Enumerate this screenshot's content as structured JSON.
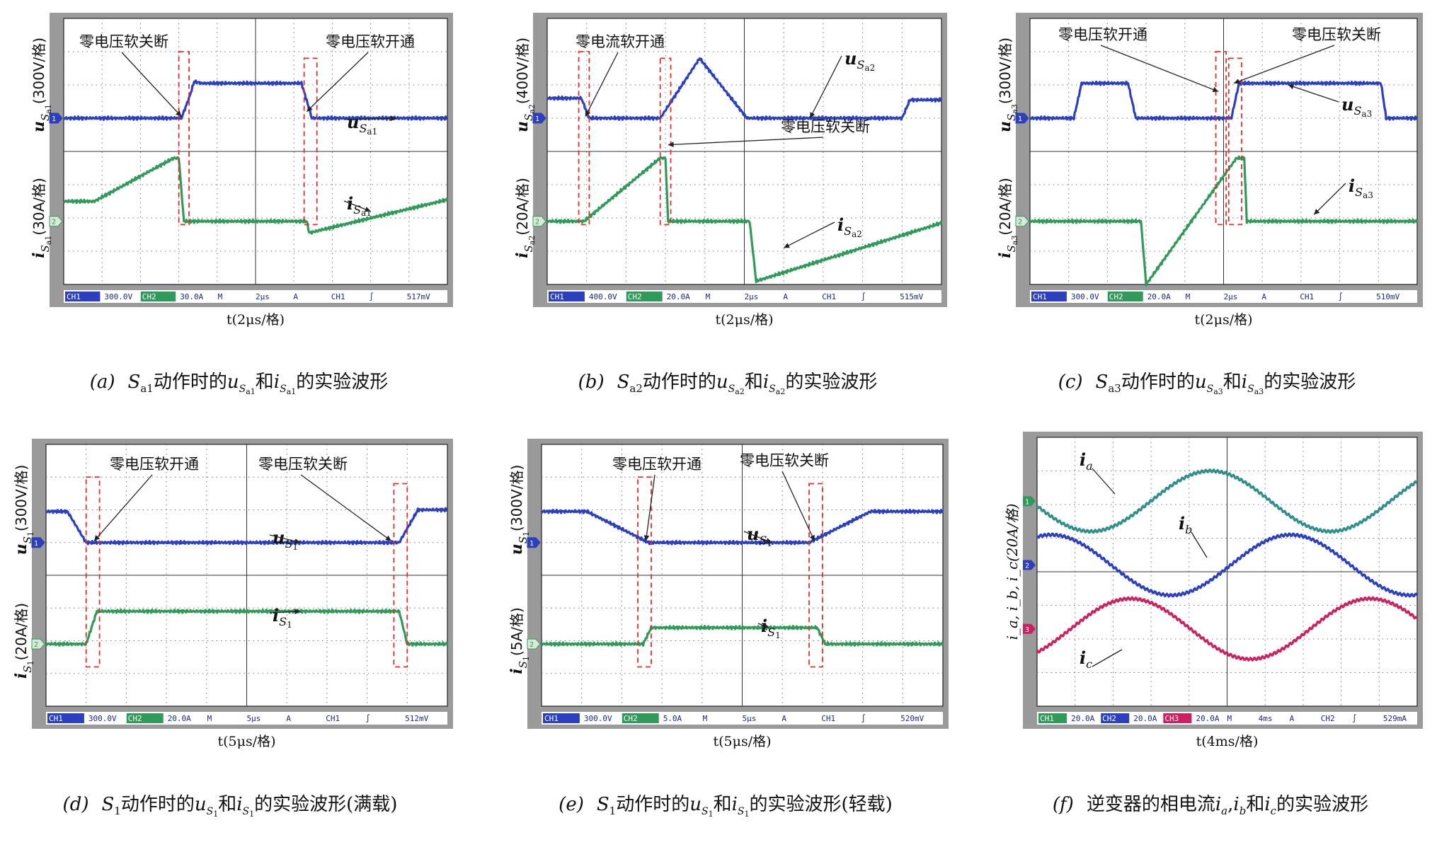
{
  "chart_data": [
    {
      "id": "a",
      "type": "line",
      "caption": {
        "prefix": "(a)",
        "pre": "S",
        "pre_sub": "a1",
        "mid": "动作时的",
        "v": "u",
        "v_sub": "S",
        "v_subsub": "a1",
        "and": "和",
        "i": "i",
        "i_sub": "S",
        "i_subsub": "a1",
        "post": "的实验波形"
      },
      "xlabel": "t(2μs/格)",
      "ylabel_top": {
        "main": "u",
        "sub": "S",
        "subsub": "a1",
        "unit": "(300V/格)"
      },
      "ylabel_bottom": {
        "main": "i",
        "sub": "S",
        "subsub": "a1",
        "unit": "(30A/格)"
      },
      "annotations": [
        {
          "text": "零电压软关断",
          "kind": "cn"
        },
        {
          "text": "零电压软开通",
          "kind": "cn"
        },
        {
          "main": "u",
          "sub": "S",
          "subsub": "a1",
          "kind": "sym"
        },
        {
          "main": "i",
          "sub": "S",
          "subsub": "a1",
          "kind": "sym"
        }
      ],
      "status": [
        "CH1",
        "300.0V",
        "CH2",
        "30.0A",
        "M",
        "2μs",
        "A",
        "CH1",
        "∫",
        "517mV"
      ],
      "channel_markers": [
        "1",
        "2"
      ],
      "series": [
        {
          "name": "CH1",
          "color": "#2b3fbf",
          "x": [
            0,
            4.6,
            4.9,
            5.1,
            5.4,
            7,
            9.3,
            9.7,
            11.5,
            15
          ],
          "y": [
            1.0,
            1.0,
            1.6,
            2.1,
            2.05,
            2.05,
            2.05,
            1.0,
            1.0,
            1.0
          ]
        },
        {
          "name": "CH2",
          "color": "#2f9a5a",
          "x": [
            0,
            1.2,
            4.3,
            4.5,
            4.7,
            6,
            9.5,
            9.6,
            10.4,
            15
          ],
          "y": [
            0.6,
            0.6,
            1.9,
            1.9,
            0.0,
            0.0,
            0.0,
            -0.35,
            -0.2,
            0.65
          ]
        }
      ],
      "zvs_windows": [
        [
          4.5,
          4.9
        ],
        [
          9.4,
          9.9
        ]
      ]
    },
    {
      "id": "b",
      "type": "line",
      "caption": {
        "prefix": "(b)",
        "pre": "S",
        "pre_sub": "a2",
        "mid": "动作时的",
        "v": "u",
        "v_sub": "S",
        "v_subsub": "a2",
        "and": "和",
        "i": "i",
        "i_sub": "S",
        "i_subsub": "a2",
        "post": "的实验波形"
      },
      "xlabel": "t(2μs/格)",
      "ylabel_top": {
        "main": "u",
        "sub": "S",
        "subsub": "a2",
        "unit": "(400V/格)"
      },
      "ylabel_bottom": {
        "main": "i",
        "sub": "S",
        "subsub": "a2",
        "unit": "(20A/格)"
      },
      "annotations": [
        {
          "text": "零电流软开通",
          "kind": "cn"
        },
        {
          "text": "零电压软关断",
          "kind": "cn"
        },
        {
          "main": "u",
          "sub": "S",
          "subsub": "a2",
          "kind": "sym"
        },
        {
          "main": "i",
          "sub": "S",
          "subsub": "a2",
          "kind": "sym"
        }
      ],
      "status": [
        "CH1",
        "400.0V",
        "CH2",
        "20.0A",
        "M",
        "2μs",
        "A",
        "CH1",
        "∫",
        "515mV"
      ],
      "channel_markers": [
        "1",
        "2"
      ],
      "series": [
        {
          "name": "CH1",
          "color": "#2b3fbf",
          "x": [
            0,
            1.3,
            1.6,
            4.3,
            5.8,
            7.6,
            13.5,
            13.8,
            15
          ],
          "y": [
            1.6,
            1.6,
            1.0,
            1.0,
            2.8,
            1.0,
            1.0,
            1.55,
            1.55
          ]
        },
        {
          "name": "CH2",
          "color": "#2f9a5a",
          "x": [
            0,
            1.4,
            4.3,
            4.5,
            4.6,
            7.7,
            7.95,
            15
          ],
          "y": [
            0.0,
            0.0,
            1.9,
            1.9,
            0.0,
            0.0,
            -1.8,
            -0.05
          ]
        }
      ],
      "zvs_windows": [
        [
          1.2,
          1.6
        ],
        [
          4.3,
          4.7
        ]
      ]
    },
    {
      "id": "c",
      "type": "line",
      "caption": {
        "prefix": "(c)",
        "pre": "S",
        "pre_sub": "a3",
        "mid": "动作时的",
        "v": "u",
        "v_sub": "S",
        "v_subsub": "a3",
        "and": "和",
        "i": "i",
        "i_sub": "S",
        "i_subsub": "a3",
        "post": "的实验波形"
      },
      "xlabel": "t(2μs/格)",
      "ylabel_top": {
        "main": "u",
        "sub": "S",
        "subsub": "a3",
        "unit": "(300V/格)"
      },
      "ylabel_bottom": {
        "main": "i",
        "sub": "S",
        "subsub": "a3",
        "unit": "(20A/格)"
      },
      "annotations": [
        {
          "text": "零电压软开通",
          "kind": "cn"
        },
        {
          "text": "零电压软关断",
          "kind": "cn"
        },
        {
          "main": "u",
          "sub": "S",
          "subsub": "a3",
          "kind": "sym"
        },
        {
          "main": "i",
          "sub": "S",
          "subsub": "a3",
          "kind": "sym"
        }
      ],
      "status": [
        "CH1",
        "300.0V",
        "CH2",
        "20.0A",
        "M",
        "2μs",
        "A",
        "CH1",
        "∫",
        "510mV"
      ],
      "channel_markers": [
        "1",
        "2"
      ],
      "series": [
        {
          "name": "CH1",
          "color": "#2b3fbf",
          "x": [
            0,
            1.7,
            2.0,
            3.8,
            4.1,
            7.8,
            8.1,
            13.6,
            13.8,
            15
          ],
          "y": [
            1.0,
            1.0,
            2.05,
            2.05,
            1.0,
            1.0,
            2.05,
            2.05,
            1.0,
            1.0
          ]
        },
        {
          "name": "CH2",
          "color": "#2f9a5a",
          "x": [
            0,
            4.3,
            4.5,
            8.0,
            8.3,
            8.4,
            15
          ],
          "y": [
            0.0,
            0.0,
            -1.9,
            1.9,
            1.9,
            0.0,
            0.0
          ]
        }
      ],
      "zvs_windows": [
        [
          7.2,
          7.6
        ],
        [
          7.7,
          8.2
        ]
      ]
    },
    {
      "id": "d",
      "type": "line",
      "caption": {
        "prefix": "(d)",
        "pre": "S",
        "pre_sub": "1",
        "mid": "动作时的",
        "v": "u",
        "v_sub": "S",
        "v_subsub": "1",
        "and": "和",
        "i": "i",
        "i_sub": "S",
        "i_subsub": "1",
        "post": "的实验波形(满载)"
      },
      "xlabel": "t(5μs/格)",
      "ylabel_top": {
        "main": "u",
        "sub": "S",
        "subsub": "1",
        "unit": "(300V/格)"
      },
      "ylabel_bottom": {
        "main": "i",
        "sub": "S",
        "subsub": "1",
        "unit": "(20A/格)"
      },
      "annotations": [
        {
          "text": "零电压软开通",
          "kind": "cn"
        },
        {
          "text": "零电压软关断",
          "kind": "cn"
        },
        {
          "main": "u",
          "sub": "S",
          "subsub": "1",
          "kind": "sym"
        },
        {
          "main": "i",
          "sub": "S",
          "subsub": "1",
          "kind": "sym"
        }
      ],
      "status": [
        "CH1",
        "300.0V",
        "CH2",
        "20.0A",
        "M",
        "5μs",
        "A",
        "CH1",
        "∫",
        "512mV"
      ],
      "channel_markers": [
        "1",
        "2"
      ],
      "series": [
        {
          "name": "CH1",
          "color": "#2b3fbf",
          "x": [
            0,
            0.8,
            1.5,
            13.2,
            13.9,
            15
          ],
          "y": [
            1.95,
            1.95,
            1.0,
            1.0,
            2.0,
            2.0
          ]
        },
        {
          "name": "CH2",
          "color": "#2f9a5a",
          "x": [
            0,
            1.5,
            1.9,
            13.2,
            13.5,
            15
          ],
          "y": [
            0.0,
            0.0,
            1.0,
            1.0,
            0.0,
            0.0
          ]
        }
      ],
      "zvs_windows": [
        [
          1.5,
          2.0
        ],
        [
          13.0,
          13.5
        ]
      ]
    },
    {
      "id": "e",
      "type": "line",
      "caption": {
        "prefix": "(e)",
        "pre": "S",
        "pre_sub": "1",
        "mid": "动作时的",
        "v": "u",
        "v_sub": "S",
        "v_subsub": "1",
        "and": "和",
        "i": "i",
        "i_sub": "S",
        "i_subsub": "1",
        "post": "的实验波形(轻载)"
      },
      "xlabel": "t(5μs/格)",
      "ylabel_top": {
        "main": "u",
        "sub": "S",
        "subsub": "1",
        "unit": "(300V/格)"
      },
      "ylabel_bottom": {
        "main": "i",
        "sub": "S",
        "subsub": "1",
        "unit": "(5A/格)"
      },
      "annotations": [
        {
          "text": "零电压软开通",
          "kind": "cn"
        },
        {
          "text": "零电压软关断",
          "kind": "cn"
        },
        {
          "main": "u",
          "sub": "S",
          "subsub": "1",
          "kind": "sym"
        },
        {
          "main": "i",
          "sub": "S",
          "subsub": "1",
          "kind": "sym"
        }
      ],
      "status": [
        "CH1",
        "300.0V",
        "CH2",
        "5.0A",
        "M",
        "5μs",
        "A",
        "CH1",
        "∫",
        "520mV"
      ],
      "channel_markers": [
        "1",
        "2"
      ],
      "series": [
        {
          "name": "CH1",
          "color": "#2b3fbf",
          "x": [
            0,
            1.7,
            4.0,
            10.0,
            12.3,
            15
          ],
          "y": [
            1.95,
            1.95,
            1.0,
            1.0,
            1.95,
            1.95
          ]
        },
        {
          "name": "CH2",
          "color": "#2f9a5a",
          "x": [
            0,
            3.8,
            4.1,
            10.3,
            10.6,
            15
          ],
          "y": [
            0.0,
            0.0,
            0.5,
            0.5,
            0.0,
            0.0
          ]
        }
      ],
      "zvs_windows": [
        [
          3.6,
          4.1
        ],
        [
          10.0,
          10.5
        ]
      ]
    },
    {
      "id": "f",
      "type": "line",
      "caption": {
        "prefix": "(f)",
        "mid": "逆变器的相电流",
        "a": "a",
        "b": "b",
        "c": "c",
        "post": "的实验波形"
      },
      "xlabel": "t(4ms/格)",
      "ylabel": "i_a, i_b, i_c(20A/格)",
      "annotations": [
        {
          "main": "i",
          "sub": "a",
          "kind": "sym"
        },
        {
          "main": "i",
          "sub": "b",
          "kind": "sym"
        },
        {
          "main": "i",
          "sub": "c",
          "kind": "sym"
        }
      ],
      "status": [
        "CH1",
        "20.0A",
        "CH2",
        "20.0A",
        "CH3",
        "20.0A",
        "M",
        "4ms",
        "A",
        "CH2",
        "∫",
        "529mA"
      ],
      "channel_markers": [
        "1",
        "2",
        "3"
      ],
      "period_div": 6.3,
      "series": [
        {
          "name": "CH1",
          "color": "#2f8f8c",
          "offset": 2.2,
          "amp": 1.0,
          "phase": 3.3
        },
        {
          "name": "CH2",
          "color": "#2b3fbf",
          "offset": 0.0,
          "amp": 1.0,
          "phase": 1.2
        },
        {
          "name": "CH3",
          "color": "#cc2060",
          "offset": -2.2,
          "amp": 1.0,
          "phase": 5.4
        }
      ]
    }
  ]
}
